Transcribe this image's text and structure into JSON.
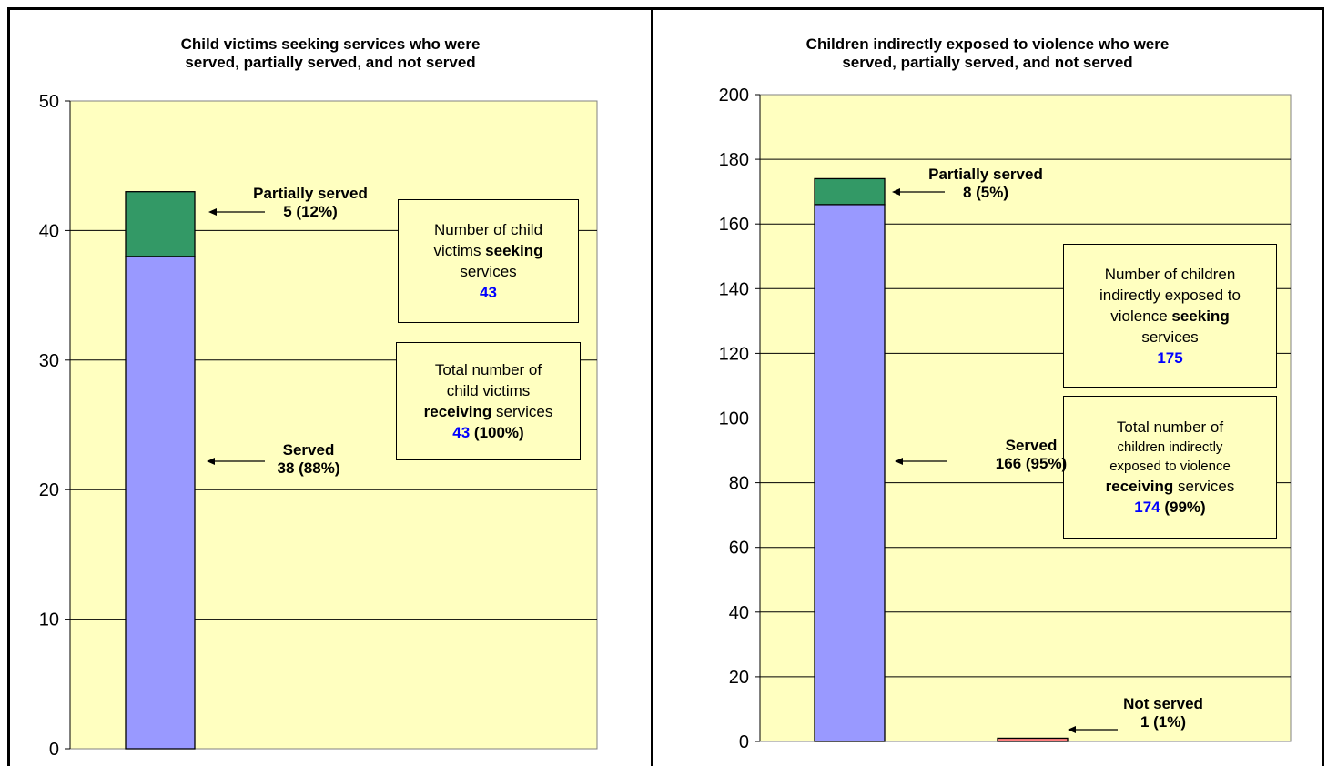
{
  "colors": {
    "plot_bg": "#FFFFC0",
    "served": "#9999FF",
    "partially_served": "#339966",
    "not_served": "#FF8080",
    "highlight_number": "#0000FF"
  },
  "chart_data": [
    {
      "type": "bar",
      "stacked": true,
      "title": "Child victims seeking services who were served, partially served, and not served",
      "title_lines": [
        "Child victims seeking services who were",
        "served, partially served, and not served"
      ],
      "categories": [
        "Served / Partially served"
      ],
      "series": [
        {
          "name": "Served",
          "values": [
            38
          ]
        },
        {
          "name": "Partially served",
          "values": [
            5
          ]
        }
      ],
      "ylim": [
        0,
        50
      ],
      "yticks": [
        "0",
        "10",
        "20",
        "30",
        "40",
        "50"
      ],
      "grid": true,
      "annotations": {
        "partially": {
          "label": "Partially served",
          "value": "5 (12%)"
        },
        "served": {
          "label": "Served",
          "value": "38 (88%)"
        }
      },
      "boxes": {
        "seeking": {
          "line1": "Number of child",
          "line2_pre": "victims ",
          "line2_bold": "seeking",
          "line3": "services",
          "number": "43"
        },
        "receiving": {
          "line1": "Total number of",
          "line2": "child victims",
          "line3_bold": "receiving",
          "line3_post": " services",
          "number": "43",
          "percent": " (100%)"
        }
      }
    },
    {
      "type": "bar",
      "stacked": true,
      "title": "Children indirectly exposed to violence who were served, partially served, and not served",
      "title_lines": [
        "Children indirectly exposed to violence who were",
        "served, partially served, and not served"
      ],
      "categories": [
        "Served / Partially served",
        "Not served"
      ],
      "series": [
        {
          "name": "Served",
          "values": [
            166,
            0
          ]
        },
        {
          "name": "Partially served",
          "values": [
            8,
            0
          ]
        },
        {
          "name": "Not served",
          "values": [
            0,
            1
          ]
        }
      ],
      "ylim": [
        0,
        200
      ],
      "yticks": [
        "0",
        "20",
        "40",
        "60",
        "80",
        "100",
        "120",
        "140",
        "160",
        "180",
        "200"
      ],
      "grid": true,
      "annotations": {
        "partially": {
          "label": "Partially served",
          "value": "8 (5%)"
        },
        "served": {
          "label": "Served",
          "value": "166 (95%)"
        },
        "not_served": {
          "label": "Not served",
          "value": "1 (1%)"
        }
      },
      "boxes": {
        "seeking": {
          "line1": "Number of children",
          "line2": "indirectly exposed to",
          "line3_pre": "violence ",
          "line3_bold": "seeking",
          "line4": "services",
          "number": "175"
        },
        "receiving": {
          "line1": "Total number of",
          "line2": "children indirectly",
          "line3": "exposed to violence",
          "line4_bold": "receiving",
          "line4_post": " services",
          "number": "174",
          "percent": " (99%)"
        }
      }
    }
  ]
}
